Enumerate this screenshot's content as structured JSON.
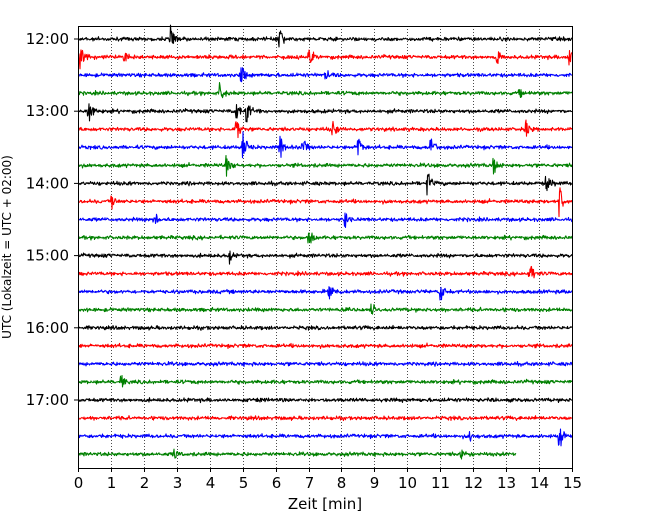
{
  "chart_data": {
    "type": "line",
    "title": "",
    "xlabel": "Zeit  [min]",
    "ylabel": "UTC (Lokalzeit = UTC + 02:00)",
    "xlim": [
      0,
      15
    ],
    "x_ticks": [
      0,
      1,
      2,
      3,
      4,
      5,
      6,
      7,
      8,
      9,
      10,
      11,
      12,
      13,
      14,
      15
    ],
    "x_tick_labels": [
      "0",
      "1",
      "2",
      "3",
      "4",
      "5",
      "6",
      "7",
      "8",
      "9",
      "10",
      "11",
      "12",
      "13",
      "14",
      "15"
    ],
    "y_ticks": [
      "12:00",
      "13:00",
      "14:00",
      "15:00",
      "16:00",
      "17:00"
    ],
    "trace_interval_min": 15,
    "first_trace": "12:00",
    "grid_vertical": true,
    "grid_style": "dotted",
    "trace_colors": [
      "#000000",
      "#ff0000",
      "#0000ff",
      "#008000"
    ],
    "series": [
      {
        "start": "12:00",
        "color": "#000000",
        "end_min": 15,
        "events": [
          {
            "t": 2.8,
            "a": 1.4
          },
          {
            "t": 6.1,
            "a": 1.0
          }
        ]
      },
      {
        "start": "12:15",
        "color": "#ff0000",
        "end_min": 15,
        "events": [
          {
            "t": 0.05,
            "a": 1.2
          },
          {
            "t": 1.4,
            "a": 0.7
          },
          {
            "t": 7.0,
            "a": 1.0
          },
          {
            "t": 12.7,
            "a": 0.9
          },
          {
            "t": 14.9,
            "a": 0.8
          }
        ]
      },
      {
        "start": "12:30",
        "color": "#0000ff",
        "end_min": 15,
        "events": [
          {
            "t": 4.95,
            "a": 1.0
          },
          {
            "t": 7.5,
            "a": 0.7
          }
        ]
      },
      {
        "start": "12:45",
        "color": "#008000",
        "end_min": 15,
        "events": [
          {
            "t": 4.3,
            "a": 0.9
          },
          {
            "t": 13.4,
            "a": 0.6
          }
        ]
      },
      {
        "start": "13:00",
        "color": "#000000",
        "end_min": 15,
        "events": [
          {
            "t": 0.3,
            "a": 1.2
          },
          {
            "t": 5.1,
            "a": 1.3
          },
          {
            "t": 4.8,
            "a": 0.7
          }
        ]
      },
      {
        "start": "13:15",
        "color": "#ff0000",
        "end_min": 15,
        "events": [
          {
            "t": 4.8,
            "a": 1.3
          },
          {
            "t": 7.7,
            "a": 1.1
          },
          {
            "t": 13.6,
            "a": 0.8
          }
        ]
      },
      {
        "start": "13:30",
        "color": "#0000ff",
        "end_min": 15,
        "events": [
          {
            "t": 5.0,
            "a": 1.5
          },
          {
            "t": 6.1,
            "a": 1.4
          },
          {
            "t": 6.8,
            "a": 1.3
          },
          {
            "t": 8.5,
            "a": 1.0
          },
          {
            "t": 10.7,
            "a": 1.2
          }
        ]
      },
      {
        "start": "13:45",
        "color": "#008000",
        "end_min": 15,
        "events": [
          {
            "t": 4.5,
            "a": 1.0
          },
          {
            "t": 12.6,
            "a": 0.9
          }
        ]
      },
      {
        "start": "14:00",
        "color": "#000000",
        "end_min": 15,
        "events": [
          {
            "t": 10.6,
            "a": 1.2
          },
          {
            "t": 14.2,
            "a": 1.1
          }
        ]
      },
      {
        "start": "14:15",
        "color": "#ff0000",
        "end_min": 15,
        "events": [
          {
            "t": 1.0,
            "a": 1.0
          },
          {
            "t": 14.6,
            "a": 1.6
          }
        ]
      },
      {
        "start": "14:30",
        "color": "#0000ff",
        "end_min": 15,
        "events": [
          {
            "t": 2.3,
            "a": 1.0
          },
          {
            "t": 8.1,
            "a": 0.9
          }
        ]
      },
      {
        "start": "14:45",
        "color": "#008000",
        "end_min": 15,
        "events": [
          {
            "t": 7.0,
            "a": 0.9
          }
        ]
      },
      {
        "start": "15:00",
        "color": "#000000",
        "end_min": 15,
        "events": [
          {
            "t": 4.6,
            "a": 0.6
          }
        ]
      },
      {
        "start": "15:15",
        "color": "#ff0000",
        "end_min": 15,
        "events": [
          {
            "t": 13.7,
            "a": 1.2
          }
        ]
      },
      {
        "start": "15:30",
        "color": "#0000ff",
        "end_min": 15,
        "events": [
          {
            "t": 7.6,
            "a": 0.8
          },
          {
            "t": 11.0,
            "a": 1.0
          }
        ]
      },
      {
        "start": "15:45",
        "color": "#008000",
        "end_min": 15,
        "events": [
          {
            "t": 8.9,
            "a": 0.7
          }
        ]
      },
      {
        "start": "16:00",
        "color": "#000000",
        "end_min": 15,
        "events": []
      },
      {
        "start": "16:15",
        "color": "#ff0000",
        "end_min": 15,
        "events": []
      },
      {
        "start": "16:30",
        "color": "#0000ff",
        "end_min": 15,
        "events": []
      },
      {
        "start": "16:45",
        "color": "#008000",
        "end_min": 15,
        "events": [
          {
            "t": 1.3,
            "a": 0.8
          }
        ]
      },
      {
        "start": "17:00",
        "color": "#000000",
        "end_min": 15,
        "events": []
      },
      {
        "start": "17:15",
        "color": "#ff0000",
        "end_min": 15,
        "events": []
      },
      {
        "start": "17:30",
        "color": "#0000ff",
        "end_min": 15,
        "events": [
          {
            "t": 14.6,
            "a": 1.3
          },
          {
            "t": 11.9,
            "a": 0.5
          }
        ]
      },
      {
        "start": "17:45",
        "color": "#008000",
        "end_min": 13.3,
        "events": [
          {
            "t": 2.9,
            "a": 0.6
          },
          {
            "t": 11.6,
            "a": 0.6
          }
        ]
      }
    ]
  }
}
